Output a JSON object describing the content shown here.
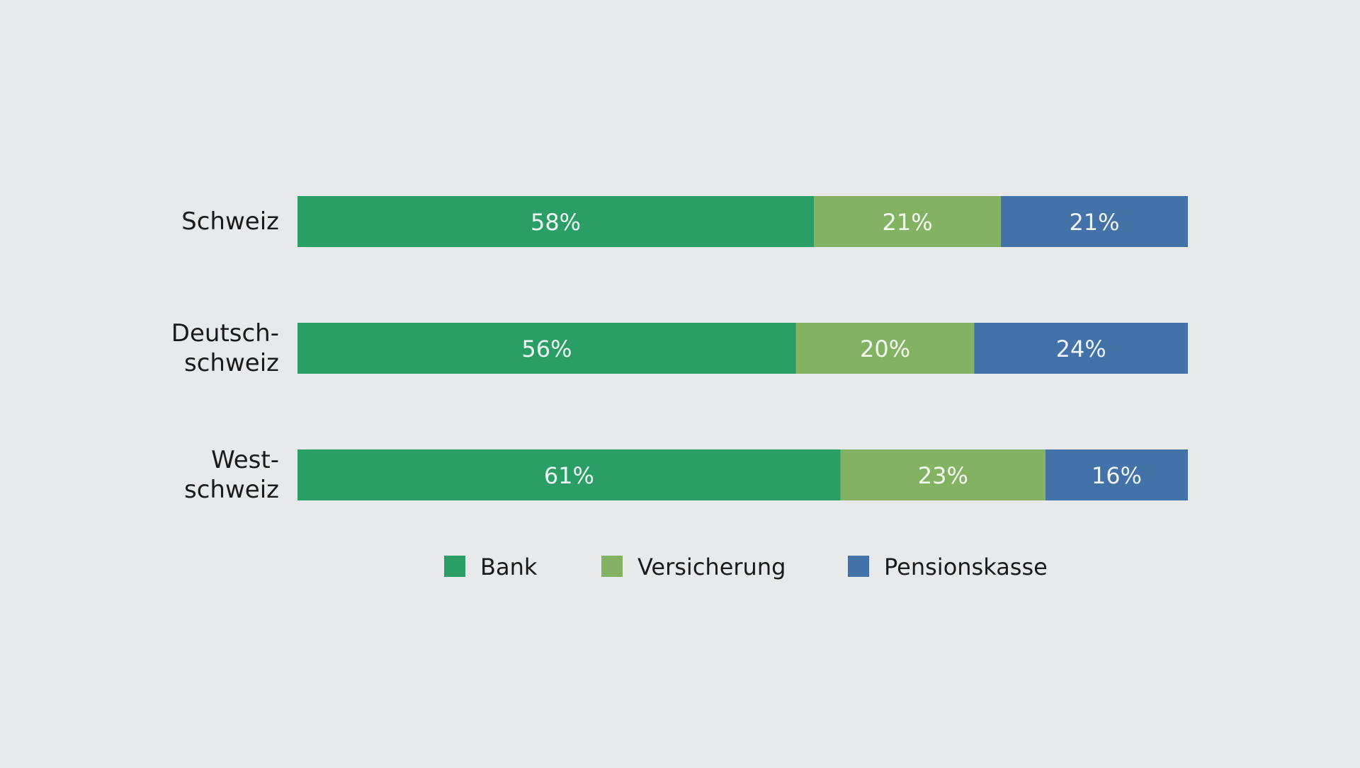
{
  "chart_data": {
    "type": "bar",
    "orientation": "horizontal",
    "stacked": true,
    "categories": [
      [
        "Schweiz"
      ],
      [
        "Deutsch-",
        "schweiz"
      ],
      [
        "West-",
        "schweiz"
      ]
    ],
    "series": [
      {
        "name": "Bank",
        "color": "#2b9e66",
        "values": [
          58,
          56,
          61
        ],
        "labels": [
          "58%",
          "56%",
          "61%"
        ]
      },
      {
        "name": "Versicherung",
        "color": "#82b262",
        "values": [
          21,
          20,
          23
        ],
        "labels": [
          "21%",
          "20%",
          "23%"
        ]
      },
      {
        "name": "Pensionskasse",
        "color": "#4272a8",
        "values": [
          21,
          24,
          16
        ],
        "labels": [
          "21%",
          "24%",
          "16%"
        ]
      }
    ],
    "xlim": [
      0,
      100
    ],
    "grid": false,
    "legend_position": "bottom"
  }
}
